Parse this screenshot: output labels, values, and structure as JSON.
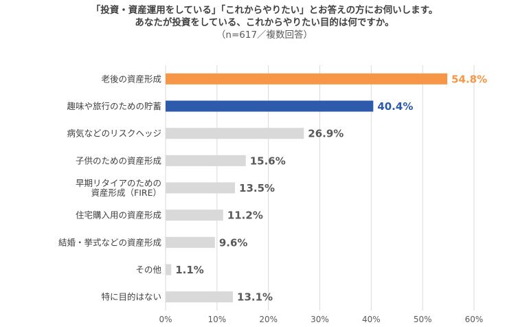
{
  "title": {
    "line1": "「投資・資産運用をしている」「これからやりたい」とお答えの方にお伺いします。",
    "line2": "あなたが投資をしている、これからやりたい目的は何ですか。",
    "line3": "（n=617／複数回答）"
  },
  "chart_data": {
    "type": "bar",
    "orientation": "horizontal",
    "categories": [
      "老後の資産形成",
      "趣味や旅行のための貯蓄",
      "病気などのリスクヘッジ",
      "子供のための資産形成",
      "早期リタイアのための\n資産形成（FIRE）",
      "住宅購入用の資産形成",
      "結婚・挙式などの資産形成",
      "その他",
      "特に目的はない"
    ],
    "values": [
      54.8,
      40.4,
      26.9,
      15.6,
      13.5,
      11.2,
      9.6,
      1.1,
      13.1
    ],
    "value_labels": [
      "54.8%",
      "40.4%",
      "26.9%",
      "15.6%",
      "13.5%",
      "11.2%",
      "9.6%",
      "1.1%",
      "13.1%"
    ],
    "xlim": [
      0,
      60
    ],
    "x_ticks": [
      "0%",
      "10%",
      "20%",
      "30%",
      "40%",
      "50%",
      "60%"
    ],
    "grid": true,
    "colors": {
      "highlight_1": "#f79646",
      "highlight_2": "#2e5aac",
      "default": "#d9d9d9",
      "default_label": "#595959",
      "grid": "#d9d9d9"
    },
    "bar_color_roles": [
      "highlight_1",
      "highlight_2",
      "default",
      "default",
      "default",
      "default",
      "default",
      "default",
      "default"
    ]
  }
}
